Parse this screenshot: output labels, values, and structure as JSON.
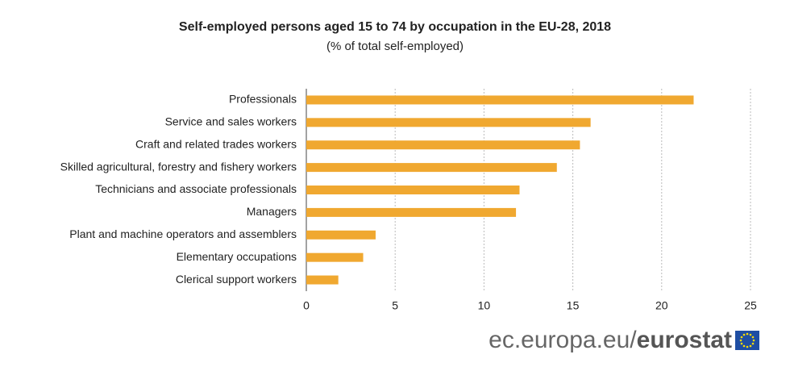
{
  "chart_data": {
    "type": "hbar",
    "title": "Self-employed persons aged 15 to 74 by occupation in the EU-28, 2018",
    "subtitle": "(% of total self-employed)",
    "categories": [
      "Professionals",
      "Service and sales workers",
      "Craft and related trades workers",
      "Skilled agricultural, forestry and fishery workers",
      "Technicians and associate professionals",
      "Managers",
      "Plant and machine operators and assemblers",
      "Elementary occupations",
      "Clerical support workers"
    ],
    "values": [
      21.8,
      16.0,
      15.4,
      14.1,
      12.0,
      11.8,
      3.9,
      3.2,
      1.8
    ],
    "color": "#f0a830",
    "xlim": [
      0,
      25
    ],
    "xticks": [
      0,
      5,
      10,
      15,
      20,
      25
    ],
    "grid": true,
    "source_site": "ec.europa.eu/",
    "source_brand": "eurostat"
  }
}
